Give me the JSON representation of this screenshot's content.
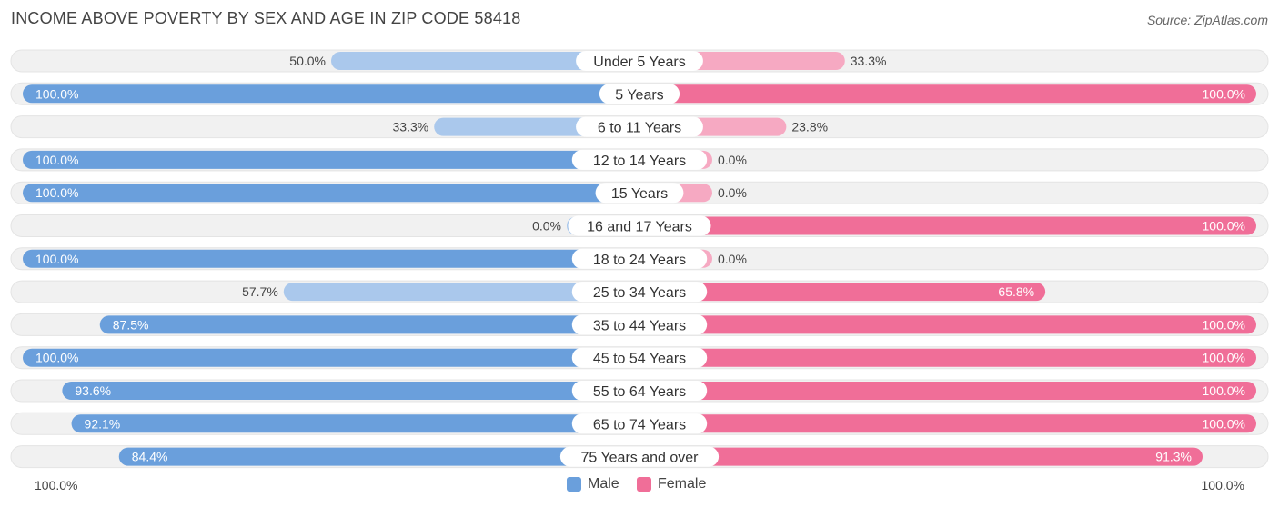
{
  "title": "INCOME ABOVE POVERTY BY SEX AND AGE IN ZIP CODE 58418",
  "source": "Source: ZipAtlas.com",
  "axis": {
    "left_label": "100.0%",
    "right_label": "100.0%"
  },
  "legend": {
    "male_label": "Male",
    "female_label": "Female"
  },
  "colors": {
    "male": "#6a9fdc",
    "female": "#f06e98",
    "male_light": "#aac8ec",
    "female_light": "#f6a9c2",
    "track": "#f1f1f1"
  },
  "chart_data": {
    "type": "bar",
    "orientation": "horizontal-diverging",
    "categories": [
      "Under 5 Years",
      "5 Years",
      "6 to 11 Years",
      "12 to 14 Years",
      "15 Years",
      "16 and 17 Years",
      "18 to 24 Years",
      "25 to 34 Years",
      "35 to 44 Years",
      "45 to 54 Years",
      "55 to 64 Years",
      "65 to 74 Years",
      "75 Years and over"
    ],
    "series": [
      {
        "name": "Male",
        "values": [
          50.0,
          100.0,
          33.3,
          100.0,
          100.0,
          0.0,
          100.0,
          57.7,
          87.5,
          100.0,
          93.6,
          92.1,
          84.4
        ],
        "labels": [
          "50.0%",
          "100.0%",
          "33.3%",
          "100.0%",
          "100.0%",
          "0.0%",
          "100.0%",
          "57.7%",
          "87.5%",
          "100.0%",
          "93.6%",
          "92.1%",
          "84.4%"
        ]
      },
      {
        "name": "Female",
        "values": [
          33.3,
          100.0,
          23.8,
          0.0,
          0.0,
          100.0,
          0.0,
          65.8,
          100.0,
          100.0,
          100.0,
          100.0,
          91.3
        ],
        "labels": [
          "33.3%",
          "100.0%",
          "23.8%",
          "0.0%",
          "0.0%",
          "100.0%",
          "0.0%",
          "65.8%",
          "100.0%",
          "100.0%",
          "100.0%",
          "100.0%",
          "91.3%"
        ]
      }
    ],
    "xlim": [
      0,
      100
    ],
    "legend_position": "bottom-center"
  }
}
